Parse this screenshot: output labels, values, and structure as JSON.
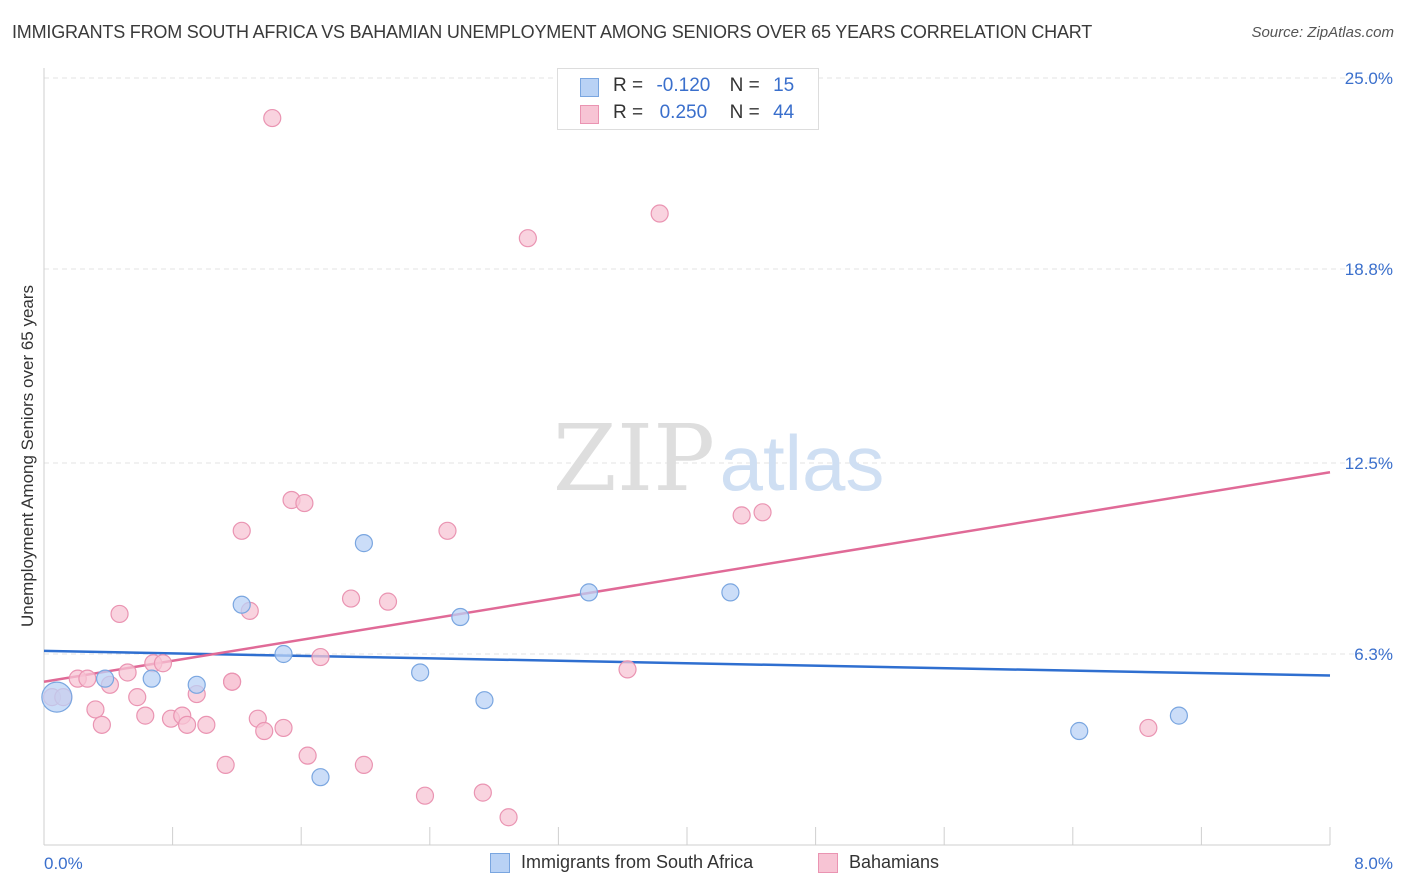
{
  "title": "IMMIGRANTS FROM SOUTH AFRICA VS BAHAMIAN UNEMPLOYMENT AMONG SENIORS OVER 65 YEARS CORRELATION CHART",
  "source": "Source: ZipAtlas.com",
  "watermark": {
    "zip": "ZIP",
    "atlas": "atlas"
  },
  "colors": {
    "blue_fill": "#b9d2f5",
    "blue_stroke": "#7aa6e0",
    "blue_line": "#2f6fd0",
    "pink_fill": "#f7c4d4",
    "pink_stroke": "#ea94b2",
    "pink_line": "#e06a97",
    "tick_label": "#3a6fcc",
    "grid": "#e3e3e3"
  },
  "legend": {
    "rows": [
      {
        "r_label": "R =",
        "r_value": "-0.120",
        "n_label": "N =",
        "n_value": "15"
      },
      {
        "r_label": "R =",
        "r_value": "0.250",
        "n_label": "N =",
        "n_value": "44"
      }
    ]
  },
  "chart_data": {
    "type": "scatter",
    "title": "IMMIGRANTS FROM SOUTH AFRICA VS BAHAMIAN UNEMPLOYMENT AMONG SENIORS OVER 65 YEARS CORRELATION CHART",
    "xlabel": "",
    "ylabel": "Unemployment Among Seniors over 65 years",
    "xlim": [
      0,
      8
    ],
    "ylim": [
      0,
      26
    ],
    "x_tick_labels": [
      "0.0%",
      "8.0%"
    ],
    "y_ticks": [
      6.3,
      12.5,
      18.8,
      25.0
    ],
    "y_tick_labels": [
      "6.3%",
      "12.5%",
      "18.8%",
      "25.0%"
    ],
    "grid": true,
    "legend_position": "top-center",
    "series": [
      {
        "name": "Immigrants from South Africa",
        "color": "#b9d2f5",
        "points": [
          [
            0.08,
            4.9
          ],
          [
            0.38,
            5.5
          ],
          [
            0.67,
            5.5
          ],
          [
            0.95,
            5.3
          ],
          [
            1.23,
            7.9
          ],
          [
            1.49,
            6.3
          ],
          [
            1.72,
            2.3
          ],
          [
            1.99,
            9.9
          ],
          [
            2.34,
            5.7
          ],
          [
            2.59,
            7.5
          ],
          [
            2.74,
            4.8
          ],
          [
            3.39,
            8.3
          ],
          [
            4.27,
            8.3
          ],
          [
            6.44,
            3.8
          ],
          [
            7.06,
            4.3
          ]
        ],
        "trend": {
          "x": [
            0,
            8
          ],
          "y": [
            6.4,
            5.6
          ]
        }
      },
      {
        "name": "Bahamians",
        "color": "#f7c4d4",
        "points": [
          [
            0.05,
            4.9
          ],
          [
            0.12,
            4.9
          ],
          [
            0.21,
            5.5
          ],
          [
            0.27,
            5.5
          ],
          [
            0.32,
            4.5
          ],
          [
            0.36,
            4.0
          ],
          [
            0.41,
            5.3
          ],
          [
            0.47,
            7.6
          ],
          [
            0.52,
            5.7
          ],
          [
            0.58,
            4.9
          ],
          [
            0.63,
            4.3
          ],
          [
            0.68,
            6.0
          ],
          [
            0.74,
            6.0
          ],
          [
            0.79,
            4.2
          ],
          [
            0.86,
            4.3
          ],
          [
            0.89,
            4.0
          ],
          [
            0.95,
            5.0
          ],
          [
            1.01,
            4.0
          ],
          [
            1.13,
            2.7
          ],
          [
            1.17,
            5.4
          ],
          [
            1.23,
            10.3
          ],
          [
            1.28,
            7.7
          ],
          [
            1.33,
            4.2
          ],
          [
            1.37,
            3.8
          ],
          [
            1.49,
            3.9
          ],
          [
            1.54,
            11.3
          ],
          [
            1.62,
            11.2
          ],
          [
            1.64,
            3.0
          ],
          [
            1.72,
            6.2
          ],
          [
            1.91,
            8.1
          ],
          [
            1.99,
            2.7
          ],
          [
            2.14,
            8.0
          ],
          [
            2.37,
            1.7
          ],
          [
            2.51,
            10.3
          ],
          [
            2.73,
            1.8
          ],
          [
            2.89,
            1.0
          ],
          [
            3.01,
            19.8
          ],
          [
            3.63,
            5.8
          ],
          [
            3.83,
            20.6
          ],
          [
            4.34,
            10.8
          ],
          [
            4.47,
            10.9
          ],
          [
            6.87,
            3.9
          ],
          [
            1.42,
            23.7
          ],
          [
            1.17,
            5.4
          ]
        ],
        "trend": {
          "x": [
            0,
            8
          ],
          "y": [
            5.4,
            12.2
          ]
        }
      }
    ]
  }
}
